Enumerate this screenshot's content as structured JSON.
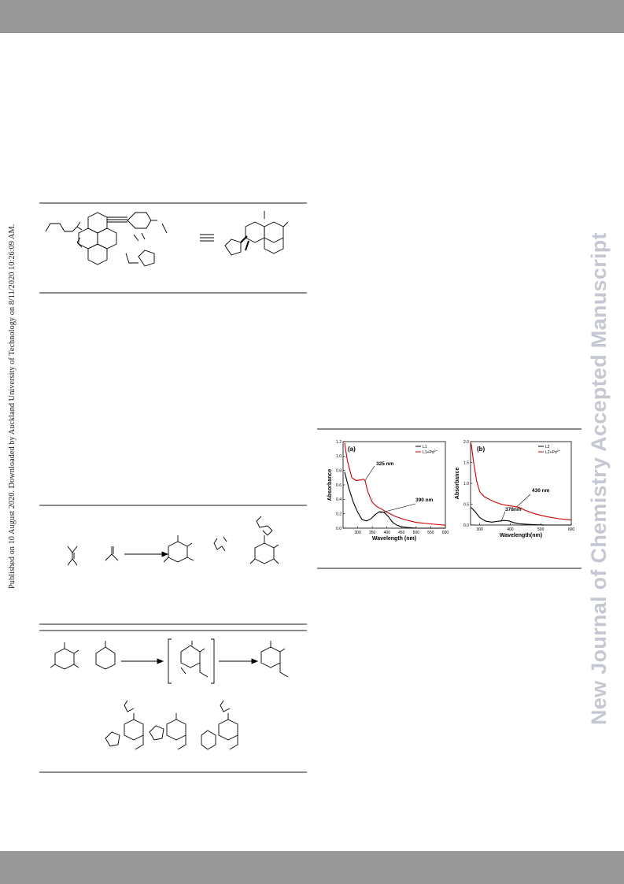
{
  "sidebar": {
    "published_note": "Published on 10 August 2020. Downloaded by Auckland University of Technology on 8/11/2020 10:26:09 AM.",
    "journal_watermark": "New Journal of Chemistry Accepted Manuscript"
  },
  "colors": {
    "band": "#999999",
    "rule": "#8c8c8c",
    "watermark": "#c5c8d3",
    "trace_black": "#000000",
    "trace_red": "#cc0000"
  },
  "chart_data": [
    {
      "type": "line",
      "panel_label": "(a)",
      "xlabel": "Wavelength (nm)",
      "ylabel": "Absorbance",
      "xlim": [
        250,
        600
      ],
      "ylim": [
        0.0,
        1.2
      ],
      "x_ticks": [
        "300",
        "350",
        "400",
        "450",
        "500",
        "550",
        "600"
      ],
      "y_ticks": [
        "0.0",
        "0.2",
        "0.4",
        "0.6",
        "0.8",
        "1.0",
        "1.2"
      ],
      "legend_position": "top-right",
      "legend": [
        "L1",
        "L1+Pd"
      ],
      "annotations": [
        "325 nm",
        "390 nm"
      ],
      "series": [
        {
          "name": "L1",
          "color": "#000000",
          "x": [
            255,
            270,
            285,
            300,
            315,
            330,
            345,
            360,
            375,
            390,
            405,
            420,
            435,
            450,
            470,
            500,
            550,
            600
          ],
          "y": [
            0.78,
            0.55,
            0.36,
            0.22,
            0.12,
            0.1,
            0.13,
            0.19,
            0.23,
            0.22,
            0.16,
            0.08,
            0.04,
            0.02,
            0.01,
            0.0,
            0.0,
            0.0
          ]
        },
        {
          "name": "L1+Pd",
          "color": "#cc0000",
          "x": [
            255,
            265,
            280,
            295,
            310,
            320,
            325,
            335,
            350,
            365,
            380,
            400,
            430,
            460,
            500,
            550,
            600
          ],
          "y": [
            1.18,
            0.93,
            0.7,
            0.66,
            0.67,
            0.68,
            0.66,
            0.5,
            0.36,
            0.3,
            0.27,
            0.22,
            0.16,
            0.12,
            0.08,
            0.06,
            0.04
          ]
        }
      ]
    },
    {
      "type": "line",
      "panel_label": "(b)",
      "xlabel": "Wavelength(nm)",
      "ylabel": "Absorbance",
      "xlim": [
        270,
        600
      ],
      "ylim": [
        0.0,
        2.0
      ],
      "x_ticks": [
        "300",
        "400",
        "500",
        "600"
      ],
      "y_ticks": [
        "0.0",
        "0.5",
        "1.0",
        "1.5",
        "2.0"
      ],
      "legend_position": "top-left",
      "legend": [
        "L2",
        "L2+Pd"
      ],
      "annotations": [
        "430 nm",
        "378nm"
      ],
      "series": [
        {
          "name": "L2",
          "color": "#000000",
          "x": [
            272,
            285,
            300,
            320,
            340,
            360,
            378,
            395,
            410,
            430,
            450,
            480,
            520,
            560,
            600
          ],
          "y": [
            0.42,
            0.32,
            0.18,
            0.09,
            0.07,
            0.09,
            0.11,
            0.1,
            0.06,
            0.03,
            0.02,
            0.01,
            0.0,
            0.0,
            0.0
          ]
        },
        {
          "name": "L2+Pd",
          "color": "#cc0000",
          "x": [
            272,
            280,
            290,
            300,
            315,
            330,
            350,
            370,
            390,
            410,
            430,
            450,
            480,
            520,
            560,
            600
          ],
          "y": [
            1.95,
            1.5,
            1.05,
            0.8,
            0.68,
            0.62,
            0.55,
            0.5,
            0.47,
            0.45,
            0.42,
            0.35,
            0.27,
            0.2,
            0.15,
            0.12
          ]
        }
      ]
    }
  ]
}
